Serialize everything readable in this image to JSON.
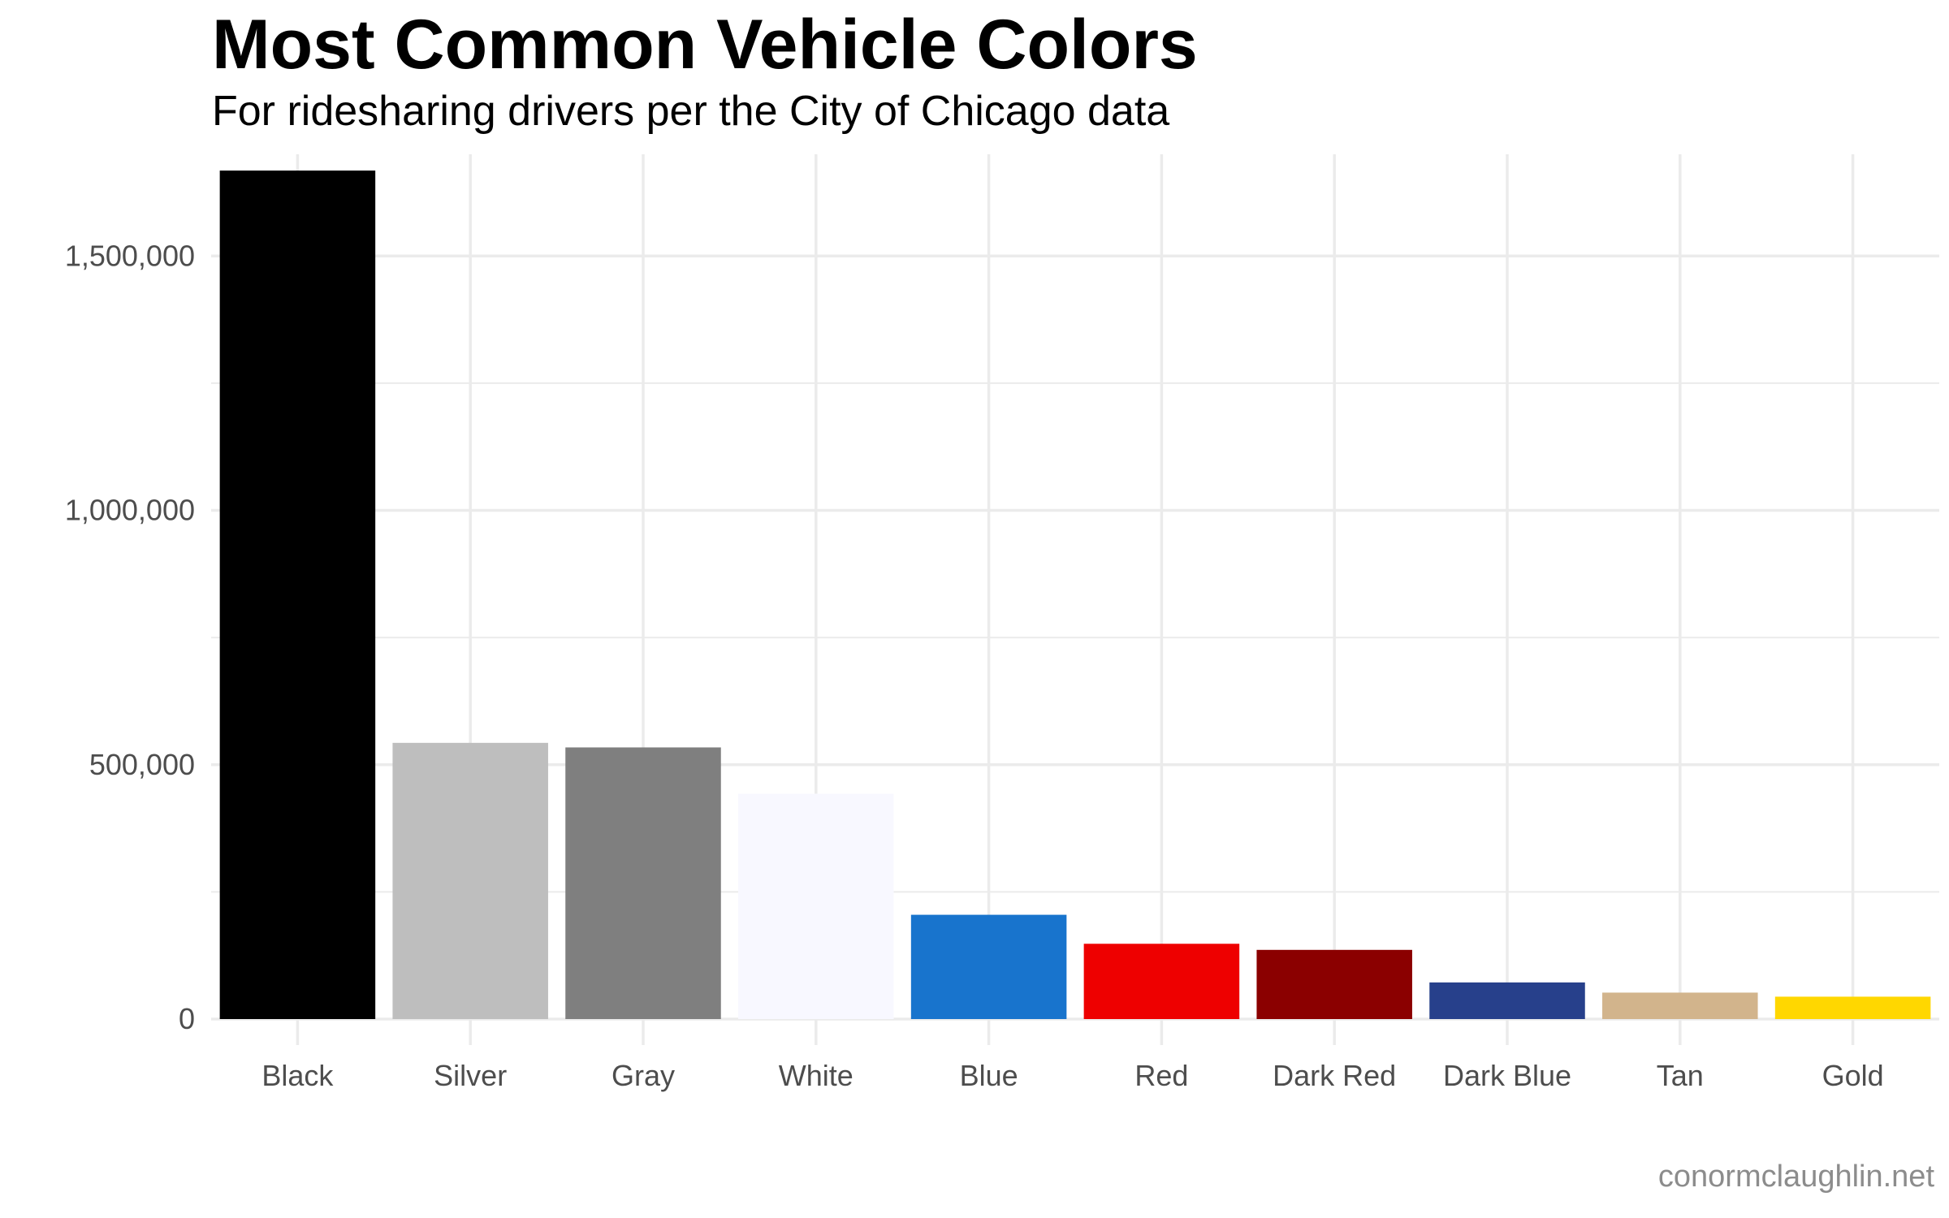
{
  "chart_data": {
    "type": "bar",
    "title": "Most Common Vehicle Colors",
    "subtitle": "For ridesharing drivers per the City of Chicago data",
    "caption": "conormclaughlin.net",
    "xlabel": "",
    "ylabel": "",
    "categories": [
      "Black",
      "Silver",
      "Gray",
      "White",
      "Blue",
      "Red",
      "Dark Red",
      "Dark Blue",
      "Tan",
      "Gold"
    ],
    "values": [
      1668000,
      543000,
      534000,
      443000,
      205000,
      148000,
      136000,
      72000,
      52000,
      44000
    ],
    "bar_colors": [
      "#000000",
      "#bebebe",
      "#7f7f7f",
      "#f8f8ff",
      "#1874cd",
      "#ee0000",
      "#8b0000",
      "#27408b",
      "#d2b48c",
      "#ffd700"
    ],
    "ylim": [
      0,
      1700000
    ],
    "yticks": [
      0,
      500000,
      1000000,
      1500000
    ],
    "ytick_labels": [
      "0",
      "500,000",
      "1,000,000",
      "1,500,000"
    ],
    "grid": true,
    "legend": "none"
  }
}
